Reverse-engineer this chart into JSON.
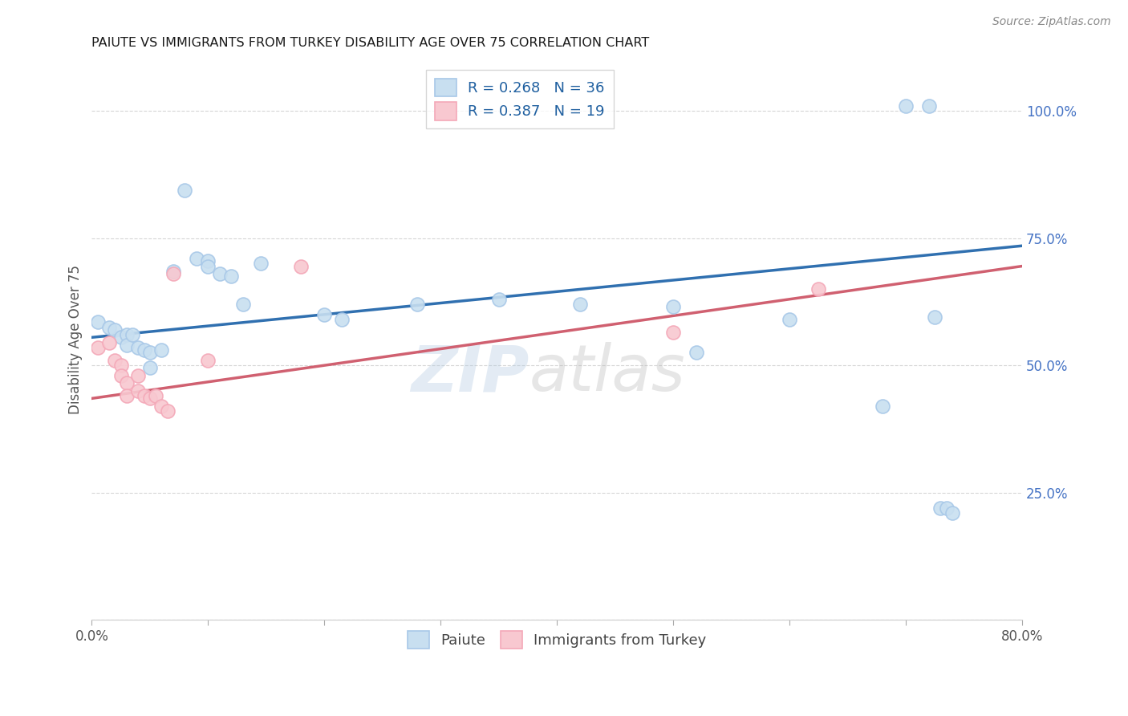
{
  "title": "PAIUTE VS IMMIGRANTS FROM TURKEY DISABILITY AGE OVER 75 CORRELATION CHART",
  "source": "Source: ZipAtlas.com",
  "ylabel_text": "Disability Age Over 75",
  "watermark": "ZIPatlas",
  "legend1_label": "R = 0.268   N = 36",
  "legend2_label": "R = 0.387   N = 19",
  "bottom_legend1": "Paiute",
  "bottom_legend2": "Immigrants from Turkey",
  "blue_color": "#a8c8e8",
  "pink_color": "#f4a8b8",
  "blue_fill": "#c8dff0",
  "pink_fill": "#f8c8d0",
  "blue_line_color": "#3070b0",
  "pink_line_color": "#d06070",
  "xmin": 0.0,
  "xmax": 0.8,
  "ymin": 0.0,
  "ymax": 1.1,
  "xticks": [
    0.0,
    0.1,
    0.2,
    0.3,
    0.4,
    0.5,
    0.6,
    0.7,
    0.8
  ],
  "xticklabels": [
    "0.0%",
    "",
    "",
    "",
    "",
    "",
    "",
    "",
    "80.0%"
  ],
  "yticks": [
    0.0,
    0.25,
    0.5,
    0.75,
    1.0
  ],
  "yticklabels": [
    "",
    "25.0%",
    "50.0%",
    "75.0%",
    "100.0%"
  ],
  "paiute_x": [
    0.005,
    0.015,
    0.02,
    0.025,
    0.03,
    0.03,
    0.035,
    0.04,
    0.045,
    0.05,
    0.05,
    0.06,
    0.07,
    0.08,
    0.09,
    0.1,
    0.1,
    0.11,
    0.12,
    0.13,
    0.145,
    0.2,
    0.215,
    0.28,
    0.35,
    0.42,
    0.5,
    0.52,
    0.6,
    0.68,
    0.7,
    0.72,
    0.725,
    0.73,
    0.735,
    0.74
  ],
  "paiute_y": [
    0.585,
    0.575,
    0.57,
    0.555,
    0.56,
    0.54,
    0.56,
    0.535,
    0.53,
    0.525,
    0.495,
    0.53,
    0.685,
    0.845,
    0.71,
    0.705,
    0.695,
    0.68,
    0.675,
    0.62,
    0.7,
    0.6,
    0.59,
    0.62,
    0.63,
    0.62,
    0.615,
    0.525,
    0.59,
    0.42,
    1.01,
    1.01,
    0.595,
    0.22,
    0.22,
    0.21
  ],
  "turkey_x": [
    0.005,
    0.015,
    0.02,
    0.025,
    0.025,
    0.03,
    0.03,
    0.04,
    0.04,
    0.045,
    0.05,
    0.055,
    0.06,
    0.065,
    0.07,
    0.1,
    0.18,
    0.5,
    0.625
  ],
  "turkey_y": [
    0.535,
    0.545,
    0.51,
    0.5,
    0.48,
    0.465,
    0.44,
    0.48,
    0.45,
    0.44,
    0.435,
    0.44,
    0.42,
    0.41,
    0.68,
    0.51,
    0.695,
    0.565,
    0.65
  ],
  "blue_trend_x": [
    0.0,
    0.8
  ],
  "blue_trend_y": [
    0.555,
    0.735
  ],
  "pink_trend_x": [
    0.0,
    0.8
  ],
  "pink_trend_y": [
    0.435,
    0.695
  ]
}
